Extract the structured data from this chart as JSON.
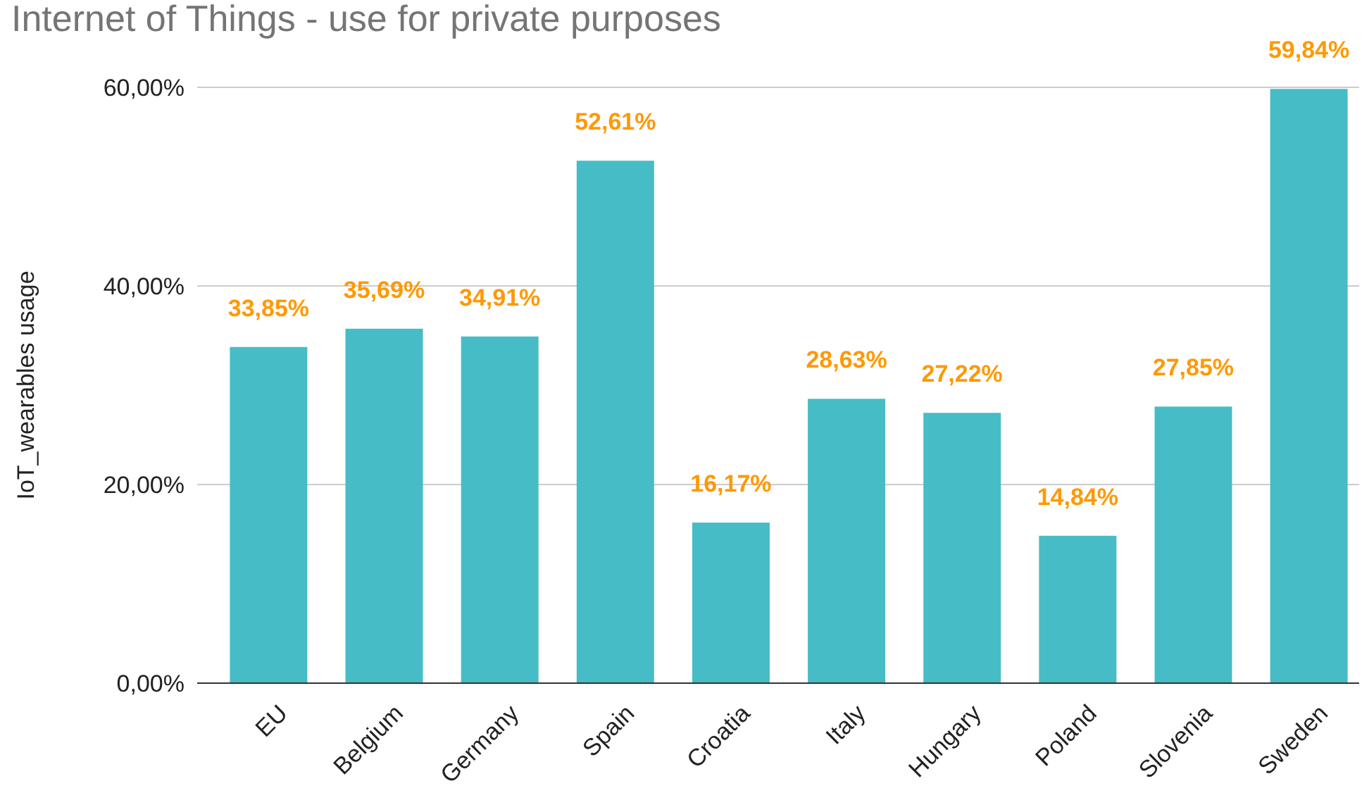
{
  "chart_data": {
    "type": "bar",
    "title": "Internet of Things - use for private purposes",
    "ylabel": "IoT_wearables usage",
    "categories": [
      "EU",
      "Belgium",
      "Germany",
      "Spain",
      "Croatia",
      "Italy",
      "Hungary",
      "Poland",
      "Slovenia",
      "Sweden"
    ],
    "values": [
      33.85,
      35.69,
      34.91,
      52.61,
      16.17,
      28.63,
      27.22,
      14.84,
      27.85,
      59.84
    ],
    "value_labels": [
      "33,85%",
      "35,69%",
      "34,91%",
      "52,61%",
      "16,17%",
      "28,63%",
      "27,22%",
      "14,84%",
      "27,85%",
      "59,84%"
    ],
    "color": "#46bcc6",
    "ylim": [
      0,
      60
    ],
    "yticks": [
      {
        "value": 0,
        "label": "0,00%"
      },
      {
        "value": 20,
        "label": "20,00%"
      },
      {
        "value": 40,
        "label": "40,00%"
      },
      {
        "value": 60,
        "label": "60,00%"
      }
    ],
    "grid": "y"
  }
}
